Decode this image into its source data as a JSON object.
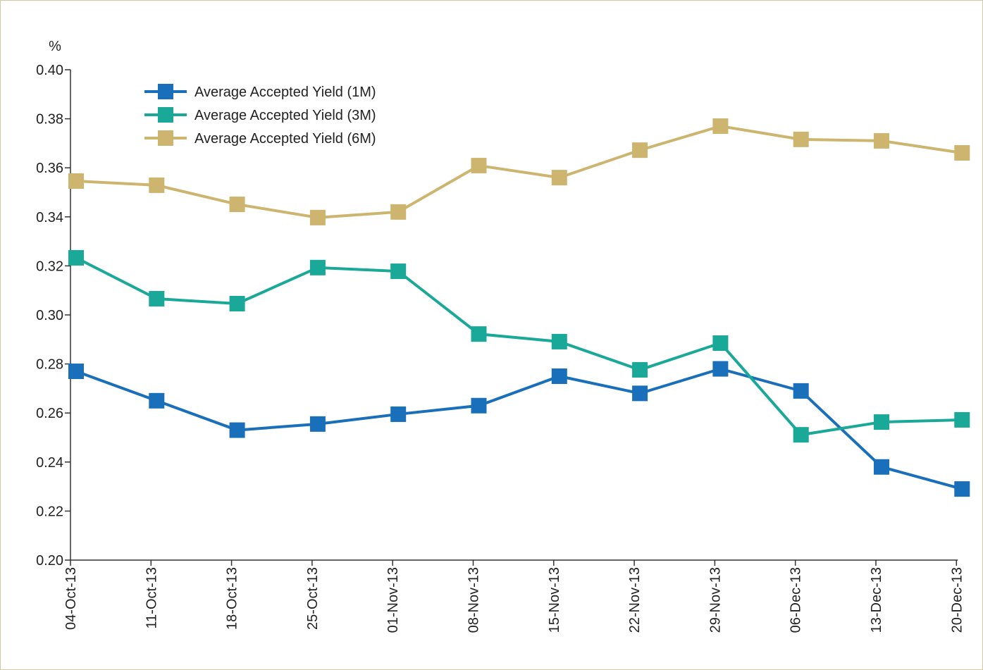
{
  "chart_data": {
    "type": "line",
    "y_label": "%",
    "categories": [
      "04-Oct-13",
      "11-Oct-13",
      "18-Oct-13",
      "25-Oct-13",
      "01-Nov-13",
      "08-Nov-13",
      "15-Nov-13",
      "22-Nov-13",
      "29-Nov-13",
      "06-Dec-13",
      "13-Dec-13",
      "20-Dec-13"
    ],
    "series": [
      {
        "name": "Average Accepted Yield (1M)",
        "color": "#1a6fba",
        "values": [
          0.277,
          0.265,
          0.253,
          0.2555,
          0.2595,
          0.263,
          0.275,
          0.268,
          0.278,
          0.269,
          0.238,
          0.229
        ]
      },
      {
        "name": "Average Accepted Yield (3M)",
        "color": "#1aa898",
        "values": [
          0.3233,
          0.3066,
          0.3046,
          0.3193,
          0.3178,
          0.2922,
          0.2891,
          0.2776,
          0.2885,
          0.2511,
          0.2563,
          0.2572
        ]
      },
      {
        "name": "Average Accepted Yield (6M)",
        "color": "#cdb46f",
        "values": [
          0.3546,
          0.3529,
          0.3451,
          0.3397,
          0.342,
          0.3609,
          0.356,
          0.3672,
          0.377,
          0.3716,
          0.371,
          0.3661
        ]
      }
    ],
    "ylim": [
      0.2,
      0.4
    ],
    "yticks": [
      {
        "value": 0.2,
        "label": "0.20"
      },
      0.22,
      0.24,
      0.26,
      0.28,
      {
        "value": 0.3,
        "label": "0.30"
      },
      0.32,
      0.34,
      0.36,
      0.38,
      {
        "value": 0.4,
        "label": "0.40"
      }
    ],
    "legend": "upper left"
  }
}
